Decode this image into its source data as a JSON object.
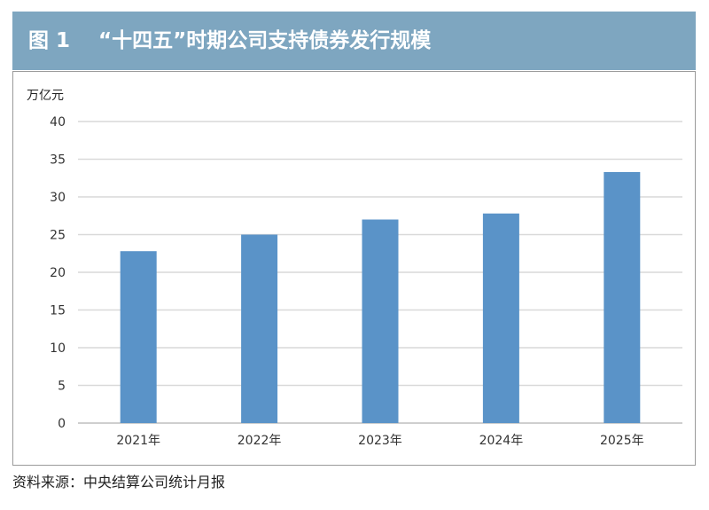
{
  "header": {
    "figure_label": "图 1",
    "title": "“十四五”时期公司支持债券发行规模"
  },
  "source_note": "资料来源：中央结算公司统计月报",
  "chart_data": {
    "type": "bar",
    "title": "“十四五”时期公司支持债券发行规模",
    "unit_label": "万亿元",
    "categories": [
      "2021年",
      "2022年",
      "2023年",
      "2024年",
      "2025年"
    ],
    "values": [
      22.8,
      25.0,
      27.0,
      27.8,
      33.3
    ],
    "ylim": [
      0,
      40
    ],
    "yticks": [
      0,
      5,
      10,
      15,
      20,
      25,
      30,
      35,
      40
    ],
    "grid": true,
    "bar_color": "#5a93c8",
    "grid_color": "#d9d9d9"
  }
}
